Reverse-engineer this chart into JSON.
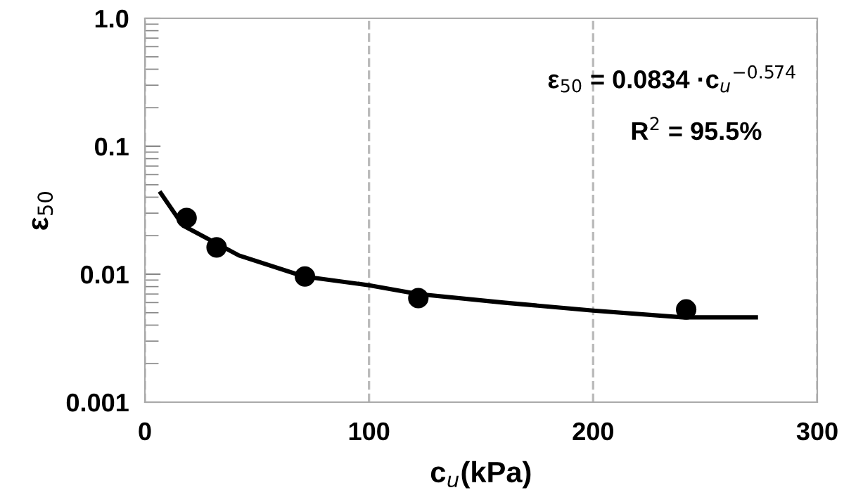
{
  "chart_data": {
    "type": "scatter",
    "xlabel": "c$_{u}$(kPa)",
    "ylabel": "ε$_{50}$",
    "log": "y",
    "xlim": [
      0,
      300
    ],
    "xticks": [
      0,
      100,
      200,
      300
    ],
    "ylim": [
      0.001,
      1
    ],
    "yticks": [
      0.001,
      0.01,
      0.1,
      {
        "value": 1,
        "label": "1.0"
      }
    ],
    "grid": "x",
    "annotations": [
      "ε$_{50}$ = 0.0834 ·c$_{u}$$^{−0.574}$",
      "R$^{2}$ = 95.5%"
    ],
    "series": [
      {
        "color": "#000000",
        "marker": "circle",
        "x": [
          18.6,
          32,
          71.4,
          122,
          241.5
        ],
        "values": [
          0.0275,
          0.0162,
          0.0096,
          0.0065,
          0.0053
        ]
      },
      {
        "type": "line",
        "color": "#000000",
        "marker": "none",
        "line_style": "solid",
        "x": [
          7.1,
          17,
          42,
          71,
          100,
          122,
          160,
          200,
          240,
          272.6
        ],
        "values": [
          0.043,
          0.024,
          0.014,
          0.0096,
          0.0082,
          0.007,
          0.006,
          0.0052,
          0.0046,
          0.0046
        ]
      }
    ]
  }
}
